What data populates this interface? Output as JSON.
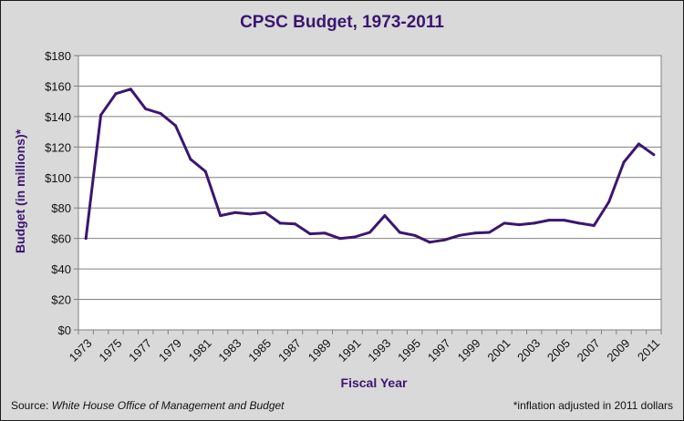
{
  "chart_data": {
    "type": "line",
    "title": "CPSC Budget, 1973-2011",
    "xlabel": "Fiscal Year",
    "ylabel": "Budget (in millions)*",
    "ylim": [
      0,
      180
    ],
    "y_ticks": [
      "$0",
      "$20",
      "$40",
      "$60",
      "$80",
      "$100",
      "$120",
      "$140",
      "$160",
      "$180"
    ],
    "x_tick_labels": [
      "1973",
      "1975",
      "1977",
      "1979",
      "1981",
      "1983",
      "1985",
      "1987",
      "1989",
      "1991",
      "1993",
      "1995",
      "1997",
      "1999",
      "2001",
      "2003",
      "2005",
      "2007",
      "2009",
      "2011"
    ],
    "grid": "horizontal",
    "line_color": "#3b1670",
    "x": [
      1973,
      1974,
      1975,
      1976,
      1977,
      1978,
      1979,
      1980,
      1981,
      1982,
      1983,
      1984,
      1985,
      1986,
      1987,
      1988,
      1989,
      1990,
      1991,
      1992,
      1993,
      1994,
      1995,
      1996,
      1997,
      1998,
      1999,
      2000,
      2001,
      2002,
      2003,
      2004,
      2005,
      2006,
      2007,
      2008,
      2009,
      2010,
      2011
    ],
    "values": [
      60,
      141,
      155,
      158,
      145,
      142,
      134,
      112,
      104,
      75,
      77,
      76,
      77,
      70,
      69.5,
      63,
      63.5,
      60,
      61,
      64,
      75,
      64,
      62,
      57.5,
      59,
      62,
      63.5,
      64,
      70,
      69,
      70,
      72,
      72,
      70,
      68.5,
      84,
      110,
      122,
      115
    ]
  },
  "footer": {
    "source_prefix": "Source: ",
    "source_name": "White House Office of Management and Budget",
    "note": "*inflation adjusted in 2011 dollars"
  }
}
